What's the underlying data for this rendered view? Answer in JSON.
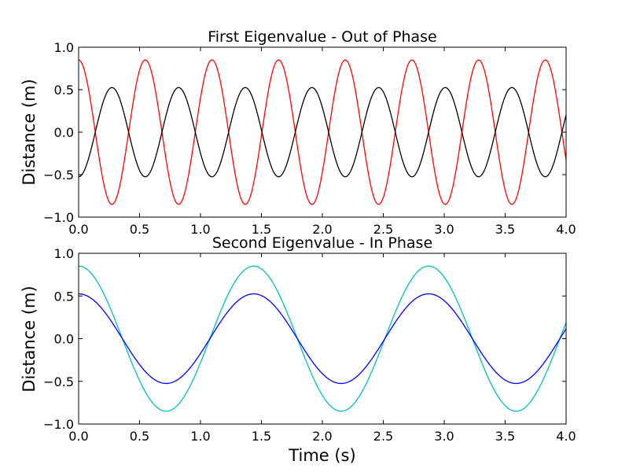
{
  "chart_data": [
    {
      "type": "line",
      "title": "First Eigenvalue - Out of Phase",
      "xlabel": "",
      "ylabel": "Distance (m)",
      "xlim": [
        0.0,
        4.0
      ],
      "ylim": [
        -1.0,
        1.0
      ],
      "xticks": [
        "0.0",
        "0.5",
        "1.0",
        "1.5",
        "2.0",
        "2.5",
        "3.0",
        "3.5",
        "4.0"
      ],
      "yticks": [
        "−1.0",
        "−0.5",
        "0.0",
        "0.5",
        "1.0"
      ],
      "grid": false,
      "series": [
        {
          "color": "#ff0000",
          "function": "cosine",
          "amplitude": 0.85,
          "period": 0.547,
          "phase_start": 0.0
        },
        {
          "color": "#000000",
          "function": "cosine",
          "amplitude": 0.525,
          "period": 0.547,
          "phase_start": 0.5
        }
      ]
    },
    {
      "type": "line",
      "title": "Second Eigenvalue - In Phase",
      "xlabel": "Time (s)",
      "ylabel": "Distance (m)",
      "xlim": [
        0.0,
        4.0
      ],
      "ylim": [
        -1.0,
        1.0
      ],
      "xticks": [
        "0.0",
        "0.5",
        "1.0",
        "1.5",
        "2.0",
        "2.5",
        "3.0",
        "3.5",
        "4.0"
      ],
      "yticks": [
        "−1.0",
        "−0.5",
        "0.0",
        "0.5",
        "1.0"
      ],
      "grid": false,
      "series": [
        {
          "color": "#00bfbf",
          "function": "cosine",
          "amplitude": 0.85,
          "period": 1.436,
          "phase_start": 0.0
        },
        {
          "color": "#0000ff",
          "function": "cosine",
          "amplitude": 0.525,
          "period": 1.436,
          "phase_start": 0.0
        }
      ]
    }
  ]
}
